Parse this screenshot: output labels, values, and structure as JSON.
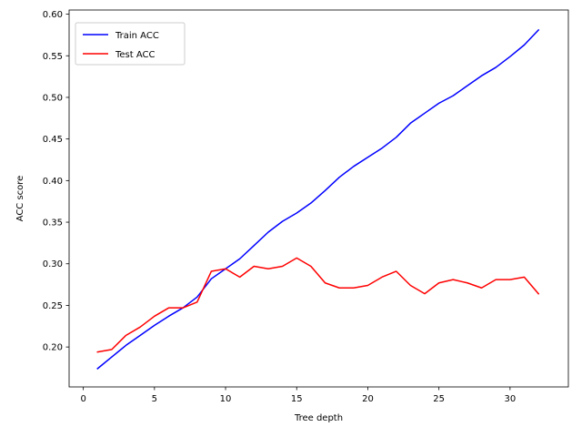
{
  "chart_data": {
    "type": "line",
    "title": "",
    "xlabel": "Tree depth",
    "ylabel": "ACC score",
    "xlim": [
      -1,
      34.1
    ],
    "ylim": [
      0.152,
      0.605
    ],
    "xticks": [
      0,
      5,
      10,
      15,
      20,
      25,
      30
    ],
    "yticks": [
      0.2,
      0.25,
      0.3,
      0.35,
      0.4,
      0.45,
      0.5,
      0.55,
      0.6
    ],
    "grid": false,
    "legend": "top-left",
    "x": [
      1,
      2,
      3,
      4,
      5,
      6,
      7,
      8,
      9,
      10,
      11,
      12,
      13,
      14,
      15,
      16,
      17,
      18,
      19,
      20,
      21,
      22,
      23,
      24,
      25,
      26,
      27,
      28,
      29,
      30,
      31,
      32
    ],
    "series": [
      {
        "name": "Train ACC",
        "color": "#0000ff",
        "values": [
          0.174,
          0.188,
          0.202,
          0.214,
          0.226,
          0.237,
          0.247,
          0.26,
          0.282,
          0.294,
          0.306,
          0.322,
          0.338,
          0.351,
          0.361,
          0.373,
          0.388,
          0.404,
          0.417,
          0.428,
          0.439,
          0.452,
          0.469,
          0.481,
          0.493,
          0.502,
          0.514,
          0.526,
          0.536,
          0.549,
          0.563,
          0.581
        ]
      },
      {
        "name": "Test ACC",
        "color": "#ff0000",
        "values": [
          0.194,
          0.197,
          0.214,
          0.224,
          0.237,
          0.247,
          0.247,
          0.254,
          0.291,
          0.294,
          0.284,
          0.297,
          0.294,
          0.297,
          0.307,
          0.297,
          0.277,
          0.271,
          0.271,
          0.274,
          0.284,
          0.291,
          0.274,
          0.264,
          0.277,
          0.281,
          0.277,
          0.271,
          0.281,
          0.281,
          0.284,
          0.264
        ]
      }
    ]
  }
}
